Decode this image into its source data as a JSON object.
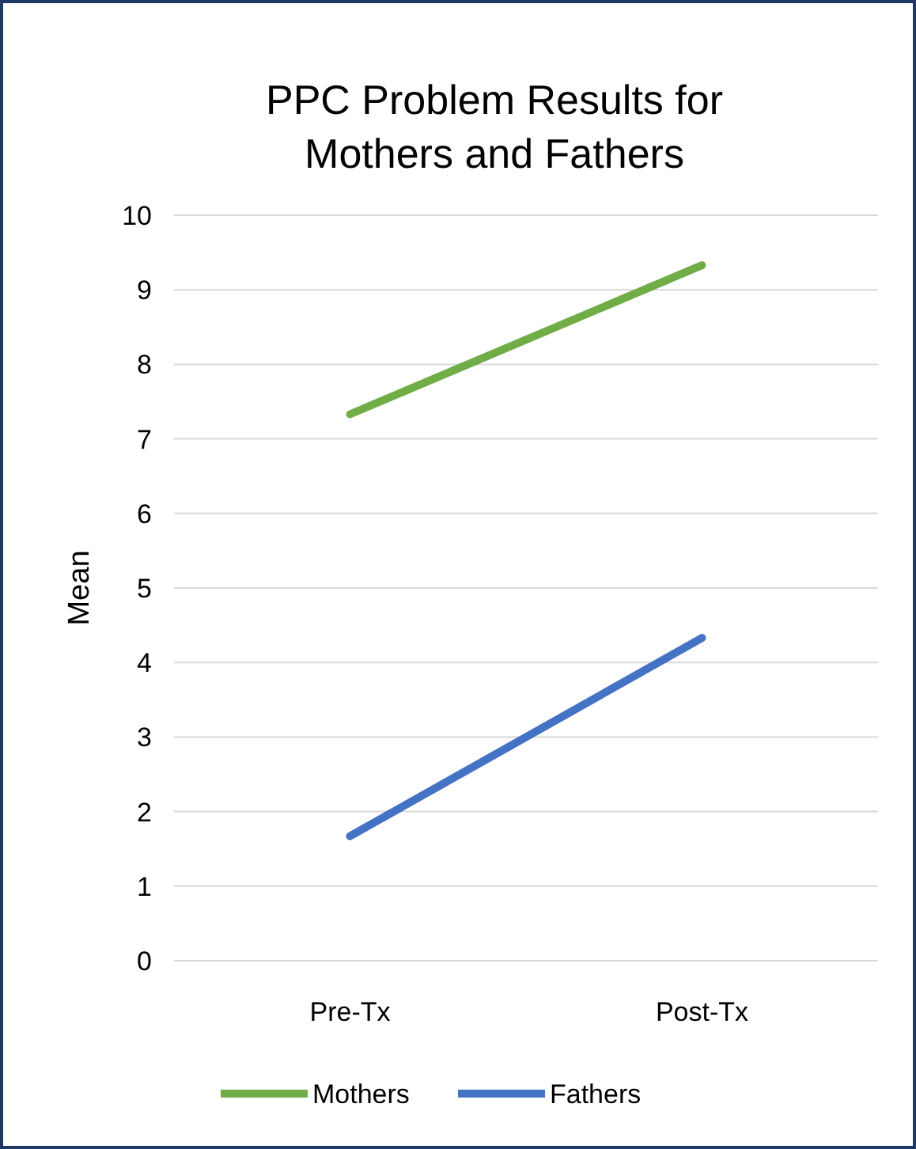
{
  "chart_data": {
    "type": "line",
    "title": "PPC Problem Results for Mothers and Fathers",
    "ylabel": "Mean",
    "categories": [
      "Pre-Tx",
      "Post-Tx"
    ],
    "series": [
      {
        "name": "Mothers",
        "color": "#70ad47",
        "values": [
          7.33,
          9.33
        ]
      },
      {
        "name": "Fathers",
        "color": "#4472c4",
        "values": [
          1.67,
          4.33
        ]
      }
    ],
    "ylim": [
      0,
      10
    ],
    "yticks": [
      0,
      1,
      2,
      3,
      4,
      5,
      6,
      7,
      8,
      9,
      10
    ],
    "grid": "y",
    "legend": "bottom",
    "marker": "none",
    "line_style": "solid"
  }
}
